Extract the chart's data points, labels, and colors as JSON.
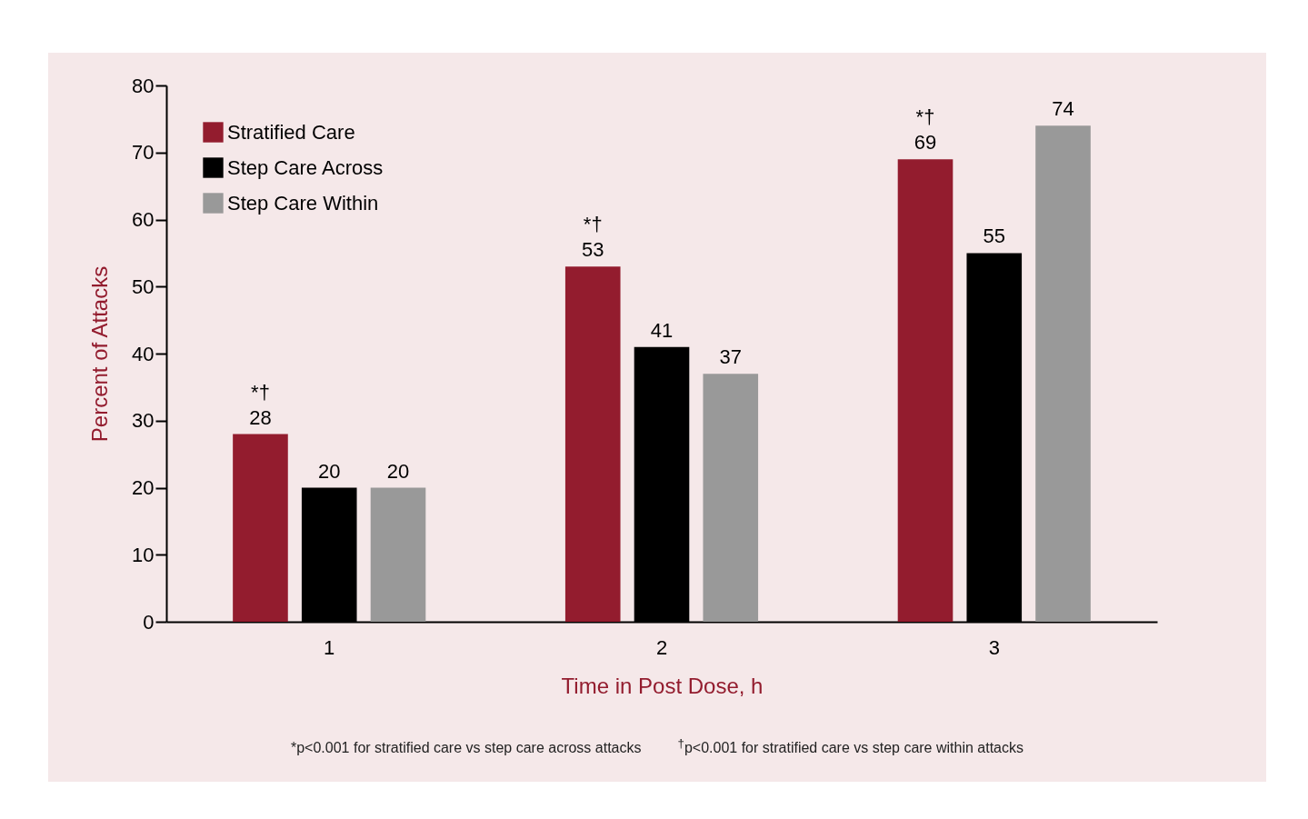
{
  "chart_data": {
    "type": "bar",
    "xlabel": "Time in Post Dose, h",
    "ylabel": "Percent of Attacks",
    "categories": [
      "1",
      "2",
      "3"
    ],
    "series": [
      {
        "name": "Stratified Care",
        "color": "#931c2e",
        "values": [
          28,
          53,
          69
        ],
        "value_labels": [
          "*†\n28",
          "*†\n53",
          "*†\n69"
        ]
      },
      {
        "name": "Step Care Across",
        "color": "#000000",
        "values": [
          20,
          41,
          55
        ],
        "value_labels": [
          "20",
          "41",
          "55"
        ]
      },
      {
        "name": "Step Care Within",
        "color": "#999999",
        "values": [
          20,
          37,
          74
        ],
        "value_labels": [
          "20",
          "37",
          "74"
        ]
      }
    ],
    "ylim": [
      0,
      80
    ],
    "yticks": [
      0,
      10,
      20,
      30,
      40,
      50,
      60,
      70,
      80
    ],
    "grid": false,
    "legend": "top left",
    "annotations": [
      "*p<0.001 for stratified care vs step care across attacks",
      "$^{†}$p<0.001 for stratified care vs step care within attacks"
    ]
  }
}
